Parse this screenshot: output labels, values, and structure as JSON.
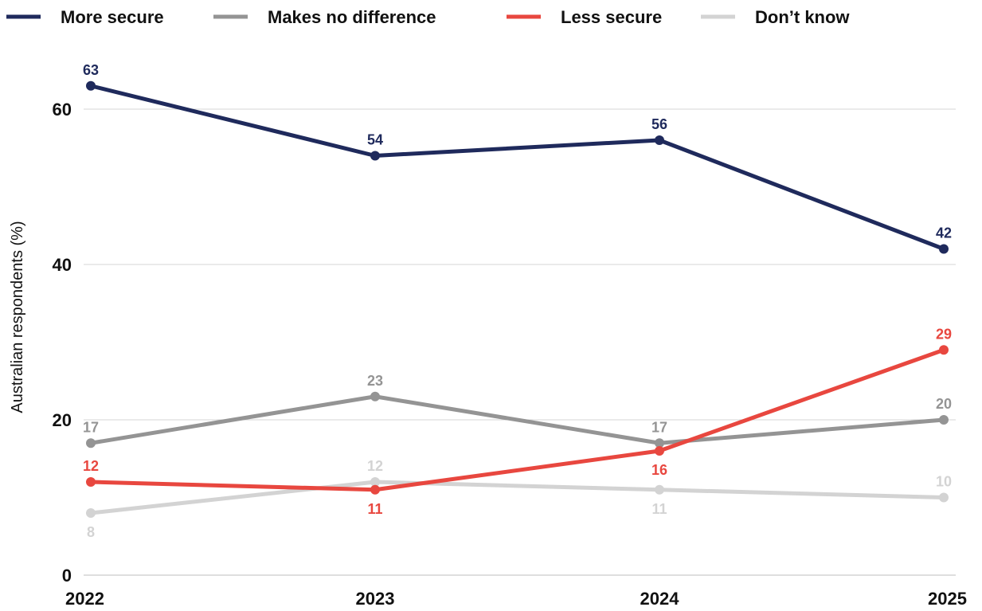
{
  "chart_data": {
    "type": "line",
    "x": [
      "2022",
      "2023",
      "2024",
      "2025"
    ],
    "ylabel": "Australian respondents (%)",
    "xlabel": "",
    "ylim": [
      0,
      63
    ],
    "yticks": [
      0,
      20,
      40,
      60
    ],
    "grid": true,
    "legend_position": "top-left",
    "series": [
      {
        "name": "More secure",
        "color": "#1f2a5c",
        "values": [
          63,
          54,
          56,
          42
        ],
        "labels": [
          "63",
          "54",
          "56",
          "42"
        ],
        "label_pos": [
          "above",
          "above",
          "above",
          "above"
        ]
      },
      {
        "name": "Makes no difference",
        "color": "#949494",
        "values": [
          17,
          23,
          17,
          20
        ],
        "labels": [
          "17",
          "23",
          "17",
          "20"
        ],
        "label_pos": [
          "above",
          "above",
          "above",
          "above"
        ]
      },
      {
        "name": "Less secure",
        "color": "#e8473f",
        "values": [
          12,
          11,
          16,
          29
        ],
        "labels": [
          "12",
          "11",
          "16",
          "29"
        ],
        "label_pos": [
          "above",
          "below",
          "below",
          "above"
        ]
      },
      {
        "name": "Don’t know",
        "color": "#d3d3d3",
        "values": [
          8,
          12,
          11,
          10
        ],
        "labels": [
          "8",
          "12",
          "11",
          "10"
        ],
        "label_pos": [
          "below",
          "above",
          "below",
          "above"
        ]
      }
    ]
  }
}
